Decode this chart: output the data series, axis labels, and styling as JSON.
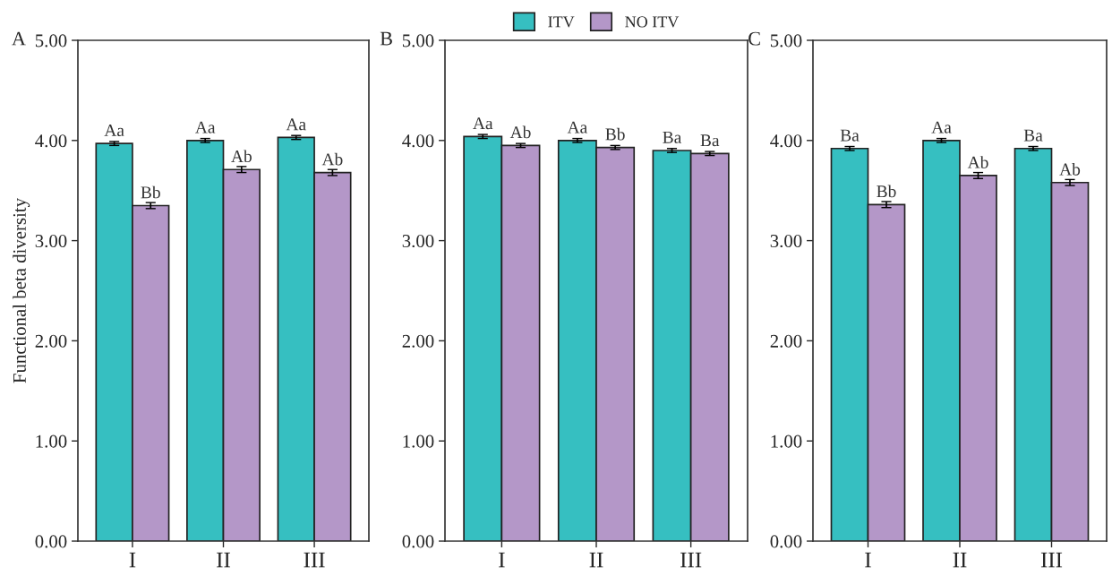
{
  "chart_data": [
    {
      "type": "bar",
      "title": "A",
      "ylabel": "Functional beta diversity",
      "categories": [
        "I",
        "II",
        "III"
      ],
      "series": [
        {
          "color": "#36bfc1",
          "values": [
            3.97,
            4.0,
            4.03
          ],
          "errors": [
            0.02,
            0.02,
            0.02
          ],
          "value_labels": [
            "Aa",
            "Aa",
            "Aa"
          ]
        },
        {
          "color": "#b497c8",
          "values": [
            3.35,
            3.71,
            3.68
          ],
          "errors": [
            0.03,
            0.03,
            0.03
          ],
          "value_labels": [
            "Bb",
            "Ab",
            "Ab"
          ]
        }
      ],
      "ylim": [
        0,
        5
      ],
      "yticks": [
        {
          "value": 0,
          "label": "0.00"
        },
        {
          "value": 1,
          "label": "1.00"
        },
        {
          "value": 2,
          "label": "2.00"
        },
        {
          "value": 3,
          "label": "3.00"
        },
        {
          "value": 4,
          "label": "4.00"
        },
        {
          "value": 5,
          "label": "5.00"
        }
      ],
      "grid": false
    },
    {
      "type": "bar",
      "title": "B",
      "categories": [
        "I",
        "II",
        "III"
      ],
      "series": [
        {
          "name": "ITV",
          "color": "#36bfc1",
          "values": [
            4.04,
            4.0,
            3.9
          ],
          "errors": [
            0.02,
            0.02,
            0.02
          ],
          "value_labels": [
            "Aa",
            "Aa",
            "Ba"
          ]
        },
        {
          "name": "NO ITV",
          "color": "#b497c8",
          "values": [
            3.95,
            3.93,
            3.87
          ],
          "errors": [
            0.02,
            0.02,
            0.02
          ],
          "value_labels": [
            "Ab",
            "Bb",
            "Ba"
          ]
        }
      ],
      "ylim": [
        0,
        5
      ],
      "yticks": [
        {
          "value": 0,
          "label": "0.00"
        },
        {
          "value": 1,
          "label": "1.00"
        },
        {
          "value": 2,
          "label": "2.00"
        },
        {
          "value": 3,
          "label": "3.00"
        },
        {
          "value": 4,
          "label": "4.00"
        },
        {
          "value": 5,
          "label": "5.00"
        }
      ],
      "grid": false,
      "legend": "top"
    },
    {
      "type": "bar",
      "title": "C",
      "categories": [
        "I",
        "II",
        "III"
      ],
      "series": [
        {
          "color": "#36bfc1",
          "values": [
            3.92,
            4.0,
            3.92
          ],
          "errors": [
            0.02,
            0.02,
            0.02
          ],
          "value_labels": [
            "Ba",
            "Aa",
            "Ba"
          ]
        },
        {
          "color": "#b497c8",
          "values": [
            3.36,
            3.65,
            3.58
          ],
          "errors": [
            0.03,
            0.03,
            0.03
          ],
          "value_labels": [
            "Bb",
            "Ab",
            "Ab"
          ]
        }
      ],
      "ylim": [
        0,
        5
      ],
      "yticks": [
        {
          "value": 0,
          "label": "0.00"
        },
        {
          "value": 1,
          "label": "1.00"
        },
        {
          "value": 2,
          "label": "2.00"
        },
        {
          "value": 3,
          "label": "3.00"
        },
        {
          "value": 4,
          "label": "4.00"
        },
        {
          "value": 5,
          "label": "5.00"
        }
      ],
      "grid": false
    }
  ]
}
